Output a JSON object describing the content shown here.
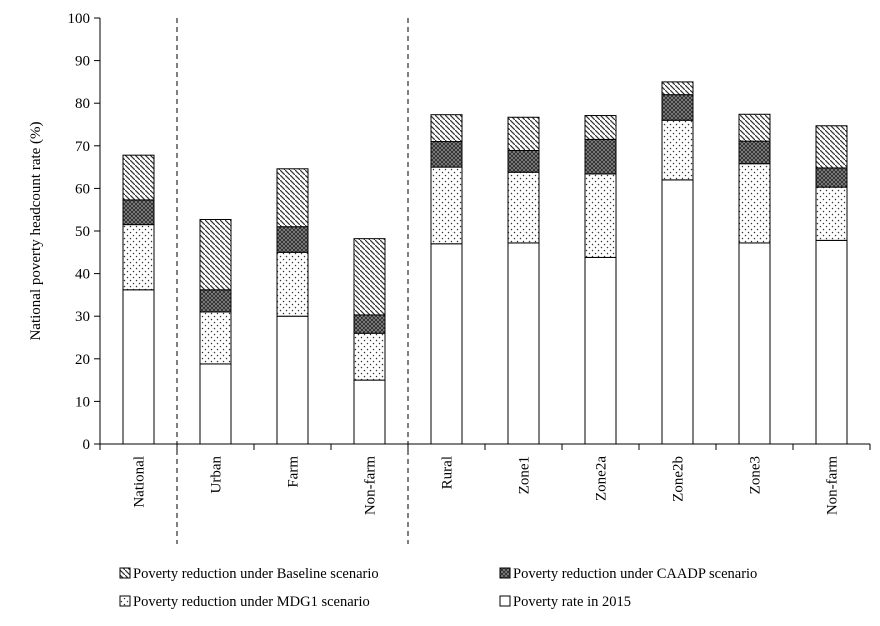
{
  "chart_data": {
    "type": "bar",
    "stacked": true,
    "title": "",
    "xlabel": "",
    "ylabel": "National poverty headcount rate  (%)",
    "ylim": [
      0,
      100
    ],
    "yticks": [
      "0",
      "10",
      "20",
      "30",
      "40",
      "50",
      "60",
      "70",
      "80",
      "90",
      "100"
    ],
    "grid": false,
    "legend_position": "bottom",
    "categories": [
      "National",
      "Urban",
      "Farm",
      "Non-farm",
      "Rural",
      "Zone1",
      "Zone2a",
      "Zone2b",
      "Zone3",
      "Non-farm"
    ],
    "group_separators_after": [
      "National",
      "Non-farm"
    ],
    "series": [
      {
        "name": "Poverty rate  in 2015",
        "pattern": "blank",
        "values": [
          36.2,
          18.8,
          30.0,
          15.0,
          47.0,
          47.2,
          43.8,
          62.0,
          47.2,
          47.8
        ]
      },
      {
        "name": "Poverty reduction  under MDG1 scenario",
        "pattern": "dots",
        "values": [
          15.3,
          12.2,
          15.0,
          11.0,
          18.0,
          16.6,
          19.6,
          14.0,
          18.6,
          12.5
        ]
      },
      {
        "name": "Poverty reduction  under CAADP scenario",
        "pattern": "crosshatch",
        "values": [
          5.8,
          5.2,
          6.0,
          4.3,
          6.0,
          5.1,
          8.1,
          6.0,
          5.3,
          4.5
        ]
      },
      {
        "name": "Poverty reduction  under Baseline scenario",
        "pattern": "diagonal",
        "values": [
          10.5,
          16.5,
          13.6,
          17.9,
          6.3,
          7.8,
          5.6,
          3.0,
          6.3,
          9.9
        ]
      }
    ],
    "legend_order": [
      3,
      2,
      1,
      0
    ]
  }
}
